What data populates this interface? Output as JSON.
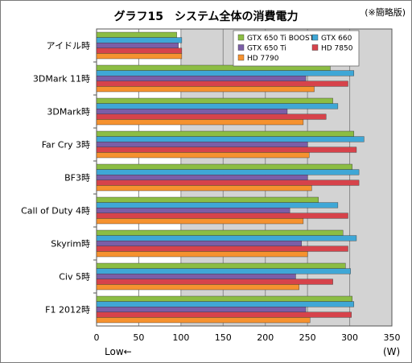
{
  "chart_data": {
    "type": "bar",
    "orientation": "horizontal",
    "title": "グラフ15　システム全体の消費電力",
    "note": "(※簡略版)",
    "unit": "(W)",
    "direction_note": "Low←",
    "categories": [
      "アイドル時",
      "3DMark 11時",
      "3DMark時",
      "Far Cry 3時",
      "BF3時",
      "Call of Duty 4時",
      "Skyrim時",
      "Civ 5時",
      "F1 2012時"
    ],
    "series": [
      {
        "name": "GTX 650 Ti BOOST",
        "color": "#8cbd44",
        "values": [
          95,
          277,
          280,
          305,
          303,
          263,
          292,
          295,
          303
        ]
      },
      {
        "name": "GTX 660",
        "color": "#3fa7d6",
        "values": [
          101,
          305,
          286,
          317,
          311,
          286,
          308,
          301,
          305
        ]
      },
      {
        "name": "GTX 650 Ti",
        "color": "#7b5ea7",
        "values": [
          97,
          248,
          226,
          250,
          250,
          229,
          243,
          236,
          248
        ]
      },
      {
        "name": "HD 7850",
        "color": "#d6434b",
        "values": [
          101,
          298,
          272,
          308,
          311,
          298,
          298,
          280,
          302
        ]
      },
      {
        "name": "HD 7790",
        "color": "#f6922f",
        "values": [
          101,
          258,
          245,
          252,
          255,
          245,
          250,
          240,
          253
        ]
      }
    ],
    "xlim": [
      0,
      350
    ],
    "xticks": [
      0,
      50,
      100,
      150,
      200,
      250,
      300,
      350
    ],
    "grid": true,
    "legend_position": "top-right"
  }
}
